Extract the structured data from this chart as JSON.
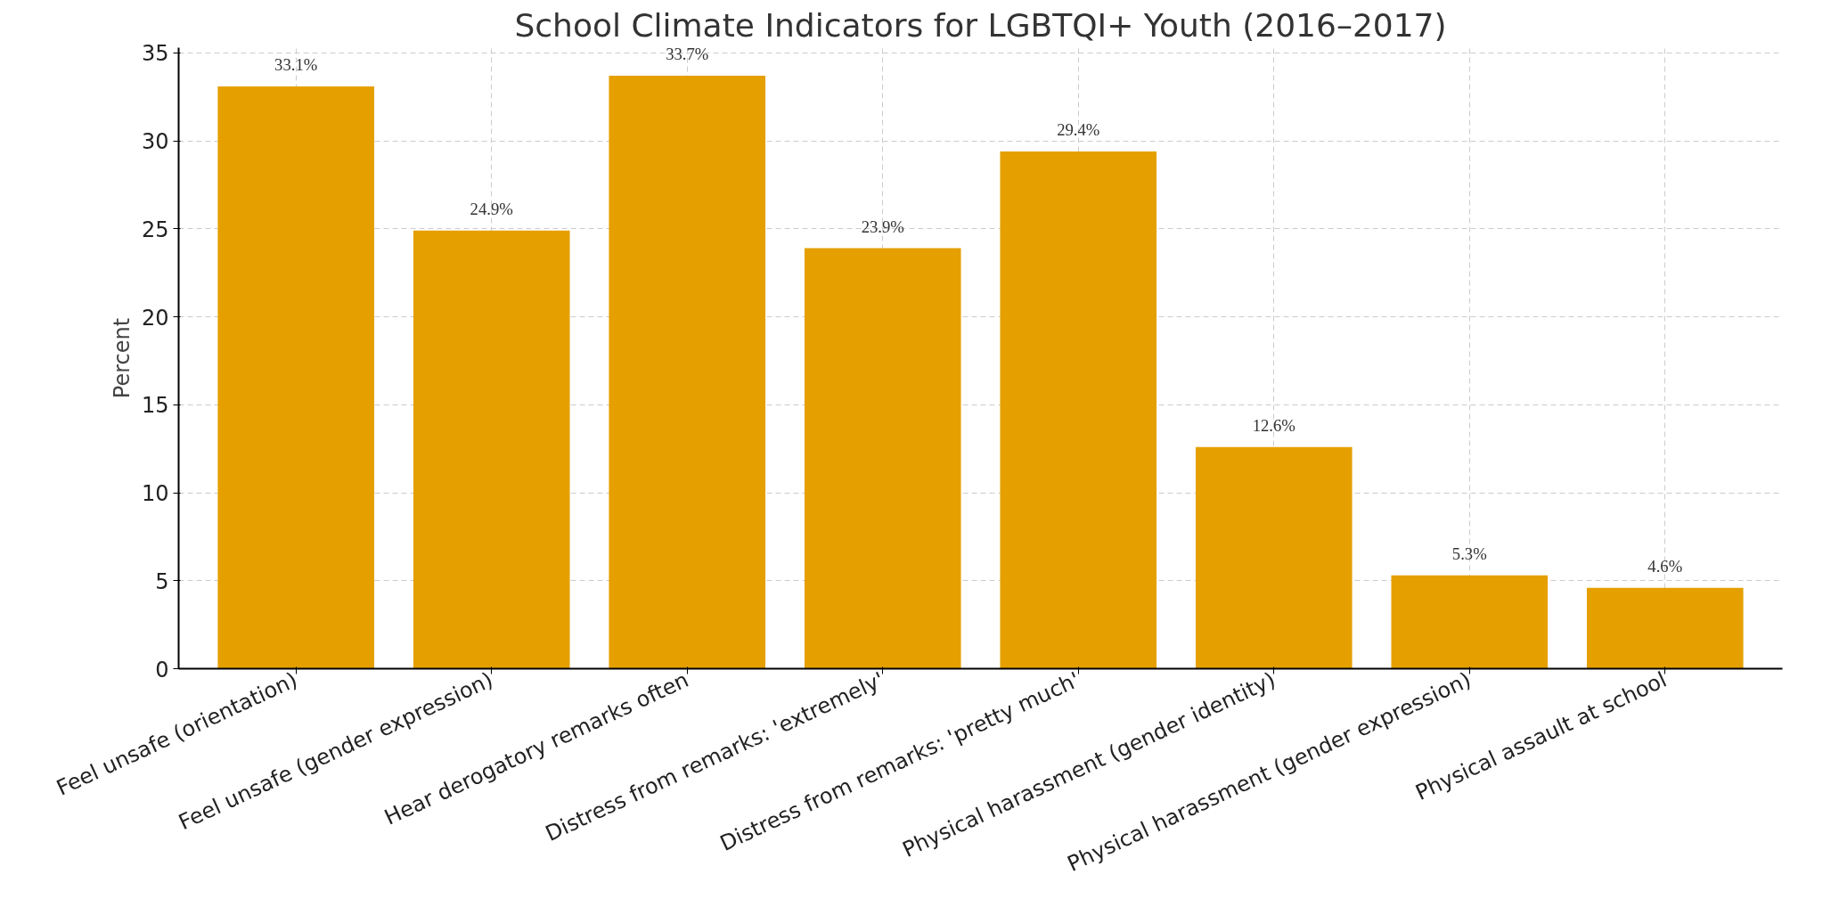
{
  "chart_data": {
    "type": "bar",
    "title": "School Climate Indicators for LGBTQI+ Youth (2016–2017)",
    "ylabel": "Percent",
    "categories": [
      "Feel unsafe (orientation)",
      "Feel unsafe (gender expression)",
      "Hear derogatory remarks often",
      "Distress from remarks: 'extremely'",
      "Distress from remarks: 'pretty much'",
      "Physical harassment (gender identity)",
      "Physical harassment (gender expression)",
      "Physical assault at school"
    ],
    "values": [
      33.1,
      24.9,
      33.7,
      23.9,
      29.4,
      12.6,
      5.3,
      4.6
    ],
    "value_labels": [
      "33.1%",
      "24.9%",
      "33.7%",
      "23.9%",
      "29.4%",
      "12.6%",
      "5.3%",
      "4.6%"
    ],
    "color": "#e5a000",
    "ylim": [
      0,
      35.3
    ],
    "yticks": [
      0,
      5,
      10,
      15,
      20,
      25,
      30,
      35
    ],
    "grid": true
  }
}
